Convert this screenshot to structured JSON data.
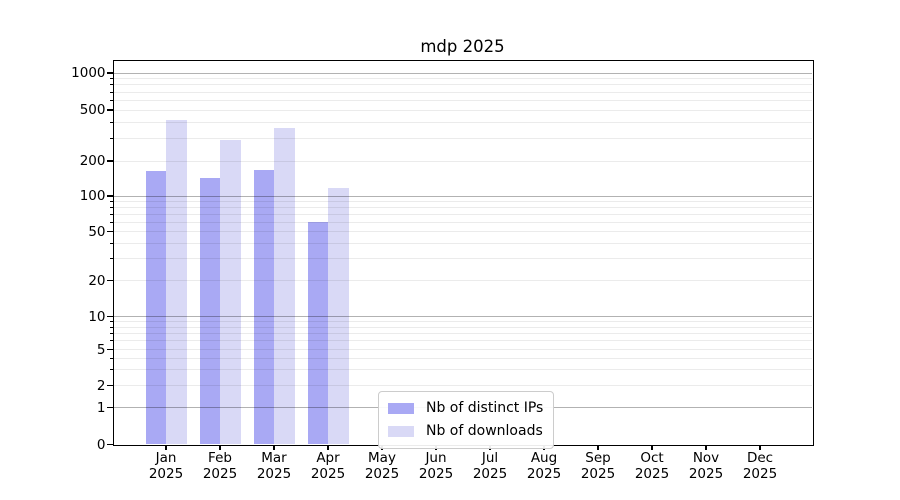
{
  "figure": {
    "title": "mdp 2025"
  },
  "chart_data": {
    "type": "bar",
    "title": "mdp 2025",
    "categories": [
      "Jan",
      "Feb",
      "Mar",
      "Apr",
      "May",
      "Jun",
      "Jul",
      "Aug",
      "Sep",
      "Oct",
      "Nov",
      "Dec"
    ],
    "year_label": "2025",
    "series": [
      {
        "name": "Nb of distinct IPs",
        "color": "#a9a9f4",
        "values": [
          164,
          142,
          168,
          60,
          null,
          null,
          null,
          null,
          null,
          null,
          null,
          null
        ]
      },
      {
        "name": "Nb of downloads",
        "color": "#d9d9f6",
        "values": [
          415,
          292,
          362,
          118,
          null,
          null,
          null,
          null,
          null,
          null,
          null,
          null
        ]
      }
    ],
    "xlabel": "",
    "ylabel": "",
    "yscale": "log-with-zero-baseline",
    "yticks": [
      0,
      1,
      2,
      5,
      10,
      20,
      50,
      100,
      200,
      500,
      1000
    ],
    "ylim": [
      0,
      1300
    ],
    "grid": true,
    "legend_position": "lower center"
  },
  "legend": {
    "items": [
      {
        "label": "Nb of distinct IPs",
        "swatch_color": "#a9a9f4"
      },
      {
        "label": "Nb of downloads",
        "swatch_color": "#d9d9f6"
      }
    ]
  }
}
